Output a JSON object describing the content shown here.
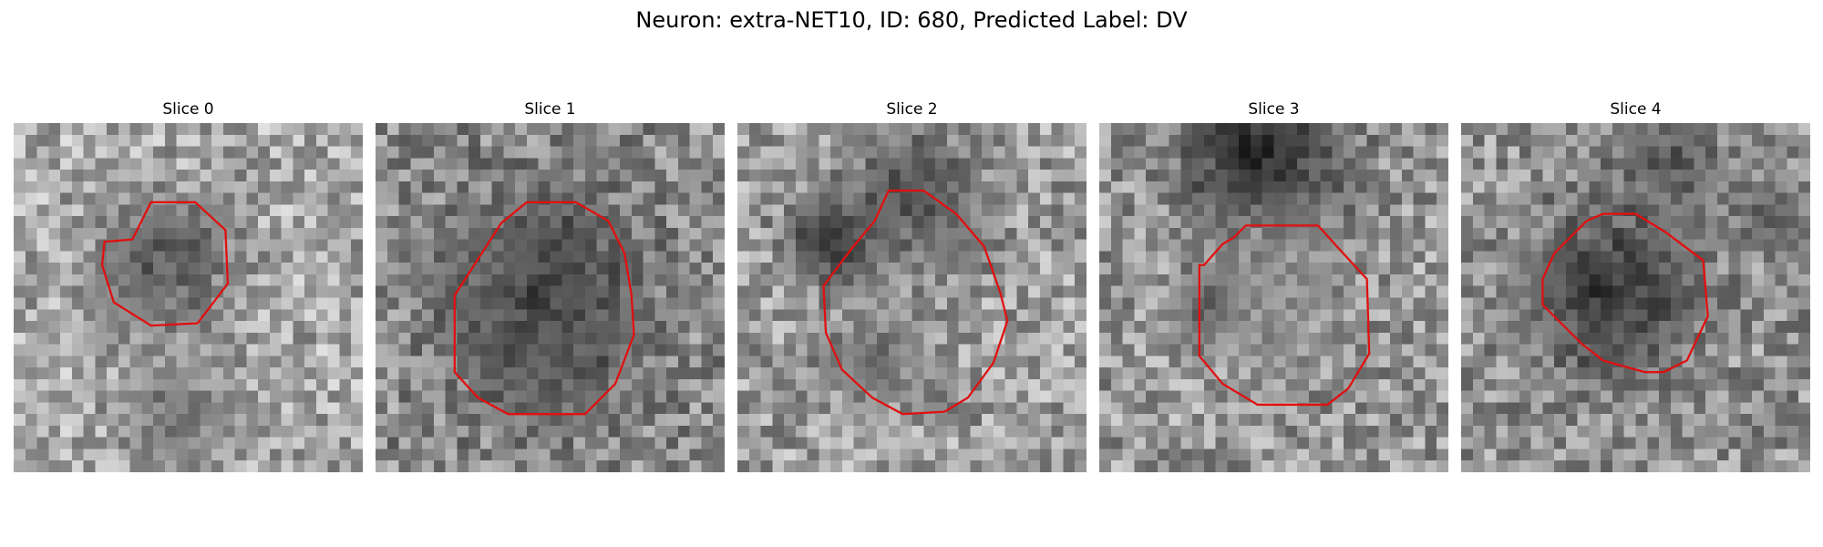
{
  "title": "Neuron: extra-NET10, ID: 680, Predicted Label: DV",
  "contour_color": "#e01010",
  "grid_size": 30,
  "slices": [
    {
      "label": "Slice 0",
      "contour": [
        [
          10.2,
          10
        ],
        [
          11.8,
          6.8
        ],
        [
          15.6,
          6.8
        ],
        [
          18.2,
          9.2
        ],
        [
          18.4,
          13.8
        ],
        [
          15.8,
          17.2
        ],
        [
          11.8,
          17.4
        ],
        [
          8.6,
          15.4
        ],
        [
          7.6,
          12.2
        ],
        [
          7.8,
          10.2
        ]
      ],
      "dark_blobs": [
        [
          12.8,
          12,
          4,
          0.35
        ],
        [
          9,
          15,
          1.5,
          0.5
        ],
        [
          14,
          25,
          3,
          0.45
        ]
      ],
      "base": 0.66
    },
    {
      "label": "Slice 1",
      "contour": [
        [
          8.6,
          12
        ],
        [
          10.8,
          8.6
        ],
        [
          13,
          6.8
        ],
        [
          17.2,
          6.8
        ],
        [
          20,
          8.4
        ],
        [
          21.4,
          11.2
        ],
        [
          22,
          14.8
        ],
        [
          22.2,
          18.2
        ],
        [
          20.6,
          22.4
        ],
        [
          18,
          25
        ],
        [
          11.4,
          25
        ],
        [
          8.8,
          23.6
        ],
        [
          6.8,
          21.4
        ],
        [
          6.8,
          14.8
        ]
      ],
      "dark_blobs": [
        [
          14.5,
          15,
          6,
          0.25
        ],
        [
          15,
          21,
          3,
          0.35
        ],
        [
          8,
          13,
          2,
          0.4
        ]
      ],
      "base": 0.55
    },
    {
      "label": "Slice 2",
      "contour": [
        [
          9.8,
          10.8
        ],
        [
          11.8,
          8.4
        ],
        [
          13,
          5.8
        ],
        [
          16,
          5.8
        ],
        [
          18.8,
          7.8
        ],
        [
          21.2,
          10.6
        ],
        [
          22.6,
          14.6
        ],
        [
          23.2,
          17
        ],
        [
          22,
          20.6
        ],
        [
          19.8,
          23.6
        ],
        [
          17.8,
          24.8
        ],
        [
          14.2,
          25
        ],
        [
          11.6,
          23.6
        ],
        [
          9,
          21.2
        ],
        [
          7.6,
          18
        ],
        [
          7.4,
          14
        ]
      ],
      "dark_blobs": [
        [
          8,
          10,
          2.5,
          0.2
        ],
        [
          15,
          6,
          4,
          0.3
        ],
        [
          12,
          20,
          3,
          0.45
        ]
      ],
      "base": 0.62
    },
    {
      "label": "Slice 3",
      "contour": [
        [
          9,
          12.2
        ],
        [
          10.6,
          10.4
        ],
        [
          11.6,
          9.8
        ],
        [
          12.6,
          8.8
        ],
        [
          18.8,
          8.8
        ],
        [
          20.6,
          10.8
        ],
        [
          23,
          13.4
        ],
        [
          23.2,
          19.8
        ],
        [
          21.4,
          22.8
        ],
        [
          19.6,
          24.2
        ],
        [
          13.6,
          24.2
        ],
        [
          10.6,
          22.4
        ],
        [
          8.6,
          20
        ],
        [
          8.6,
          12.2
        ]
      ],
      "dark_blobs": [
        [
          14,
          2,
          5,
          0.15
        ],
        [
          15,
          15,
          4,
          0.55
        ],
        [
          9,
          16,
          2,
          0.4
        ]
      ],
      "base": 0.6
    },
    {
      "label": "Slice 4",
      "contour": [
        [
          7,
          13.4
        ],
        [
          8,
          11.2
        ],
        [
          10.8,
          8.4
        ],
        [
          12.2,
          7.8
        ],
        [
          15,
          7.8
        ],
        [
          17.6,
          9.4
        ],
        [
          20.8,
          11.8
        ],
        [
          21.2,
          16.6
        ],
        [
          19.4,
          20.4
        ],
        [
          17.4,
          21.4
        ],
        [
          15.8,
          21.4
        ],
        [
          12.2,
          20.4
        ],
        [
          10.4,
          19
        ],
        [
          7,
          15.6
        ]
      ],
      "dark_blobs": [
        [
          12.8,
          14.5,
          5,
          0.22
        ],
        [
          18,
          3,
          3,
          0.35
        ],
        [
          27,
          8,
          2,
          0.35
        ]
      ],
      "base": 0.58
    }
  ]
}
